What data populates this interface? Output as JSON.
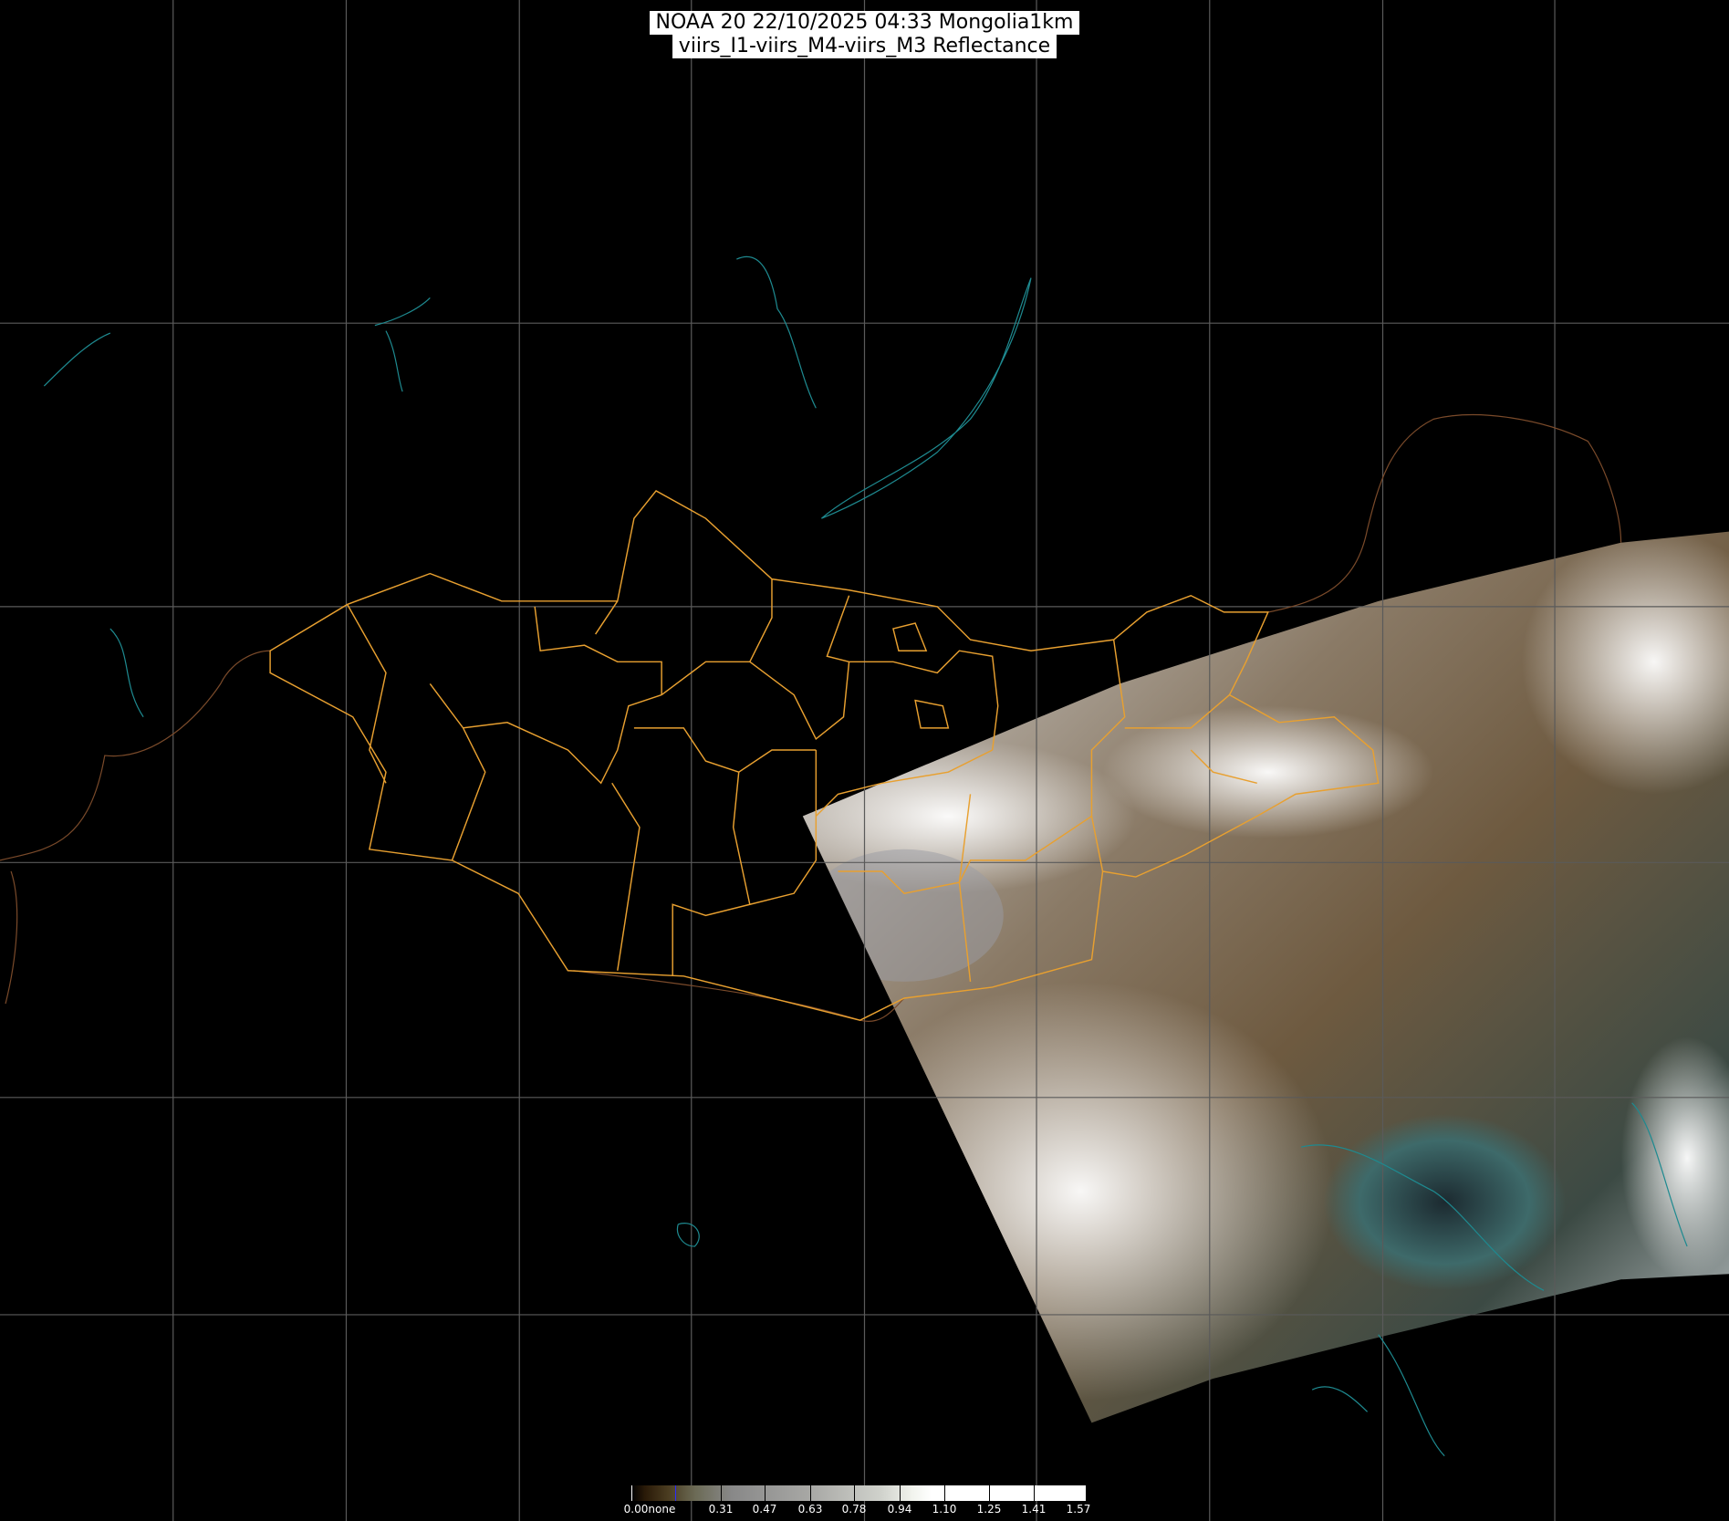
{
  "title": {
    "line1": "NOAA 20 22/10/2025 04:33 Mongolia1km",
    "line2": "viirs_I1-viirs_M4-viirs_M3 Reflectance"
  },
  "colorbar": {
    "labels": [
      "0.00none",
      "0.31",
      "0.47",
      "0.63",
      "0.78",
      "0.94",
      "1.10",
      "1.25",
      "1.41",
      "1.57"
    ],
    "min": 0.0,
    "max": 1.57
  },
  "colors": {
    "background": "#000000",
    "grid": "#5a5a5a",
    "admin_borders": "#e8a030",
    "coastlines": "#1e8a90",
    "country_borders": "#7a4a2a"
  }
}
